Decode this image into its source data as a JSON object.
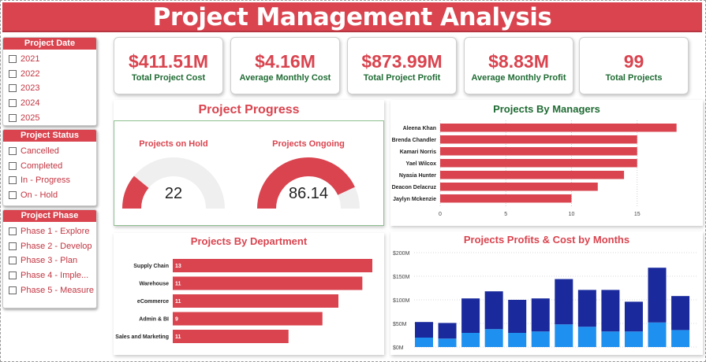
{
  "title": "Project Management Analysis",
  "slicers": {
    "project_date": {
      "header": "Project Date",
      "items": [
        "2021",
        "2022",
        "2023",
        "2024",
        "2025"
      ]
    },
    "project_status": {
      "header": "Project Status",
      "items": [
        "Cancelled",
        "Completed",
        "In - Progress",
        "On - Hold"
      ]
    },
    "project_phase": {
      "header": "Project Phase",
      "items": [
        "Phase 1 - Explore",
        "Phase 2 - Develop",
        "Phase 3 - Plan",
        "Phase 4 - Imple...",
        "Phase 5 - Measure"
      ]
    }
  },
  "kpis": [
    {
      "value": "$411.51M",
      "label": "Total Project Cost"
    },
    {
      "value": "$4.16M",
      "label": "Average Monthly Cost"
    },
    {
      "value": "$873.99M",
      "label": "Total Project Profit"
    },
    {
      "value": "$8.83M",
      "label": "Average Monthly Profit"
    },
    {
      "value": "99",
      "label": "Total Projects"
    }
  ],
  "progress": {
    "title": "Project Progress",
    "on_hold": {
      "label": "Projects on Hold",
      "value": "22",
      "fraction": 0.22
    },
    "ongoing": {
      "label": "Projects Ongoing",
      "value": "86.14",
      "fraction": 0.8614
    }
  },
  "colors": {
    "accent": "#d9444f",
    "green": "#1f6b33",
    "dark_blue": "#1a2a9c",
    "light_blue": "#1e90f0"
  },
  "chart_data": [
    {
      "type": "bar",
      "orientation": "horizontal",
      "title": "Projects By Managers",
      "categories": [
        "Aleena Khan",
        "Brenda Chandler",
        "Kamari Norris",
        "Yael Wilcox",
        "Nyasia Hunter",
        "Deacon Delacruz",
        "Jaylyn Mckenzie"
      ],
      "values": [
        18,
        15,
        15,
        15,
        14,
        12,
        10
      ],
      "xlim": [
        0,
        18.5
      ],
      "xticks": [
        "0",
        "5",
        "10",
        "15"
      ]
    },
    {
      "type": "bar",
      "orientation": "horizontal",
      "title": "Projects By Department",
      "categories": [
        "Supply Chain",
        "Warehouse",
        "eCommerce",
        "Admin & BI",
        "Sales and Marketing"
      ],
      "values": [
        13,
        11,
        11,
        9,
        11
      ],
      "data_labels": [
        "13",
        "11",
        "11",
        "9",
        "11"
      ],
      "bar_fraction": [
        1.0,
        0.95,
        0.83,
        0.75,
        0.58
      ]
    },
    {
      "type": "bar",
      "stacked": true,
      "title": "Projects Profits & Cost by Months",
      "yticks": [
        "$0M",
        "$50M",
        "$100M",
        "$150M",
        "$200M"
      ],
      "ylim": [
        0,
        200
      ],
      "series": [
        {
          "values": [
            20,
            18,
            30,
            38,
            30,
            33,
            48,
            43,
            33,
            33,
            52,
            36
          ]
        },
        {
          "values": [
            33,
            33,
            73,
            80,
            70,
            70,
            96,
            78,
            88,
            63,
            116,
            72
          ]
        }
      ]
    }
  ]
}
